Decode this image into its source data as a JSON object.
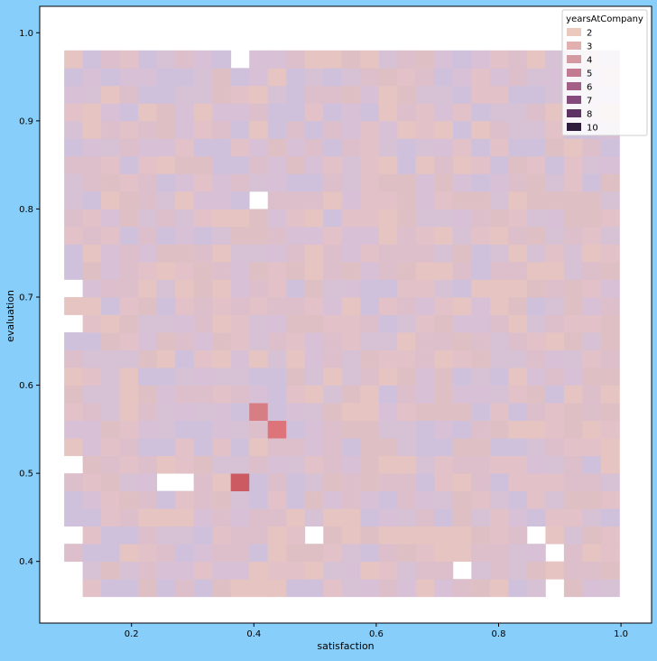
{
  "figure": {
    "background": "#87cefa"
  },
  "chart_data": {
    "type": "heatmap",
    "title": "",
    "xlabel": "satisfaction",
    "ylabel": "evaluation",
    "xlim": [
      0.05,
      1.05
    ],
    "ylim": [
      0.33,
      1.03
    ],
    "xticks": [
      0.2,
      0.4,
      0.6,
      0.8,
      1.0
    ],
    "yticks": [
      0.4,
      0.5,
      0.6,
      0.7,
      0.8,
      0.9,
      1.0
    ],
    "xtick_labels": [
      "0.2",
      "0.4",
      "0.6",
      "0.8",
      "1.0"
    ],
    "ytick_labels": [
      "0.4",
      "0.5",
      "0.6",
      "0.7",
      "0.8",
      "0.9",
      "1.0"
    ],
    "grid": false,
    "hue": "yearsAtCompany",
    "legend": {
      "title": "yearsAtCompany",
      "placement": "top-right",
      "entries": [
        {
          "label": "2",
          "color": "#ebc9bd"
        },
        {
          "label": "3",
          "color": "#e2b0ae"
        },
        {
          "label": "4",
          "color": "#d39aa1"
        },
        {
          "label": "5",
          "color": "#c27b91"
        },
        {
          "label": "6",
          "color": "#a45f86"
        },
        {
          "label": "7",
          "color": "#834a7b"
        },
        {
          "label": "8",
          "color": "#5c3363"
        },
        {
          "label": "10",
          "color": "#2e1d3c"
        }
      ]
    },
    "bins": {
      "x_start": 0.09,
      "x_width": 0.03025,
      "nx": 30,
      "y_start": 0.36,
      "y_height": 0.02,
      "ny": 32
    },
    "base_colors": [
      "#dcbfcb",
      "#e2c1c8",
      "#d8c0d6",
      "#cfc1dc",
      "#e6c4c2",
      "#dec0c4",
      "#d6c2d4"
    ],
    "empty_bins": [
      {
        "x": 0.09,
        "y": 0.38
      },
      {
        "x": 0.09,
        "y": 0.42
      },
      {
        "x": 0.09,
        "y": 0.5
      },
      {
        "x": 0.09,
        "y": 0.66
      },
      {
        "x": 0.09,
        "y": 0.7
      },
      {
        "x": 0.2415,
        "y": 0.48
      },
      {
        "x": 0.272,
        "y": 0.48
      },
      {
        "x": 0.3625,
        "y": 0.96
      },
      {
        "x": 0.393,
        "y": 0.8
      },
      {
        "x": 0.4835,
        "y": 0.42
      },
      {
        "x": 0.7255,
        "y": 0.38
      },
      {
        "x": 0.847,
        "y": 0.42
      },
      {
        "x": 0.877,
        "y": 0.4
      },
      {
        "x": 0.877,
        "y": 0.36
      }
    ],
    "highlight_bins": [
      {
        "x": 0.3625,
        "y": 0.48,
        "color": "#cc5a62"
      },
      {
        "x": 0.393,
        "y": 0.56,
        "color": "#d77e84"
      },
      {
        "x": 0.423,
        "y": 0.54,
        "color": "#dc7479"
      }
    ]
  }
}
